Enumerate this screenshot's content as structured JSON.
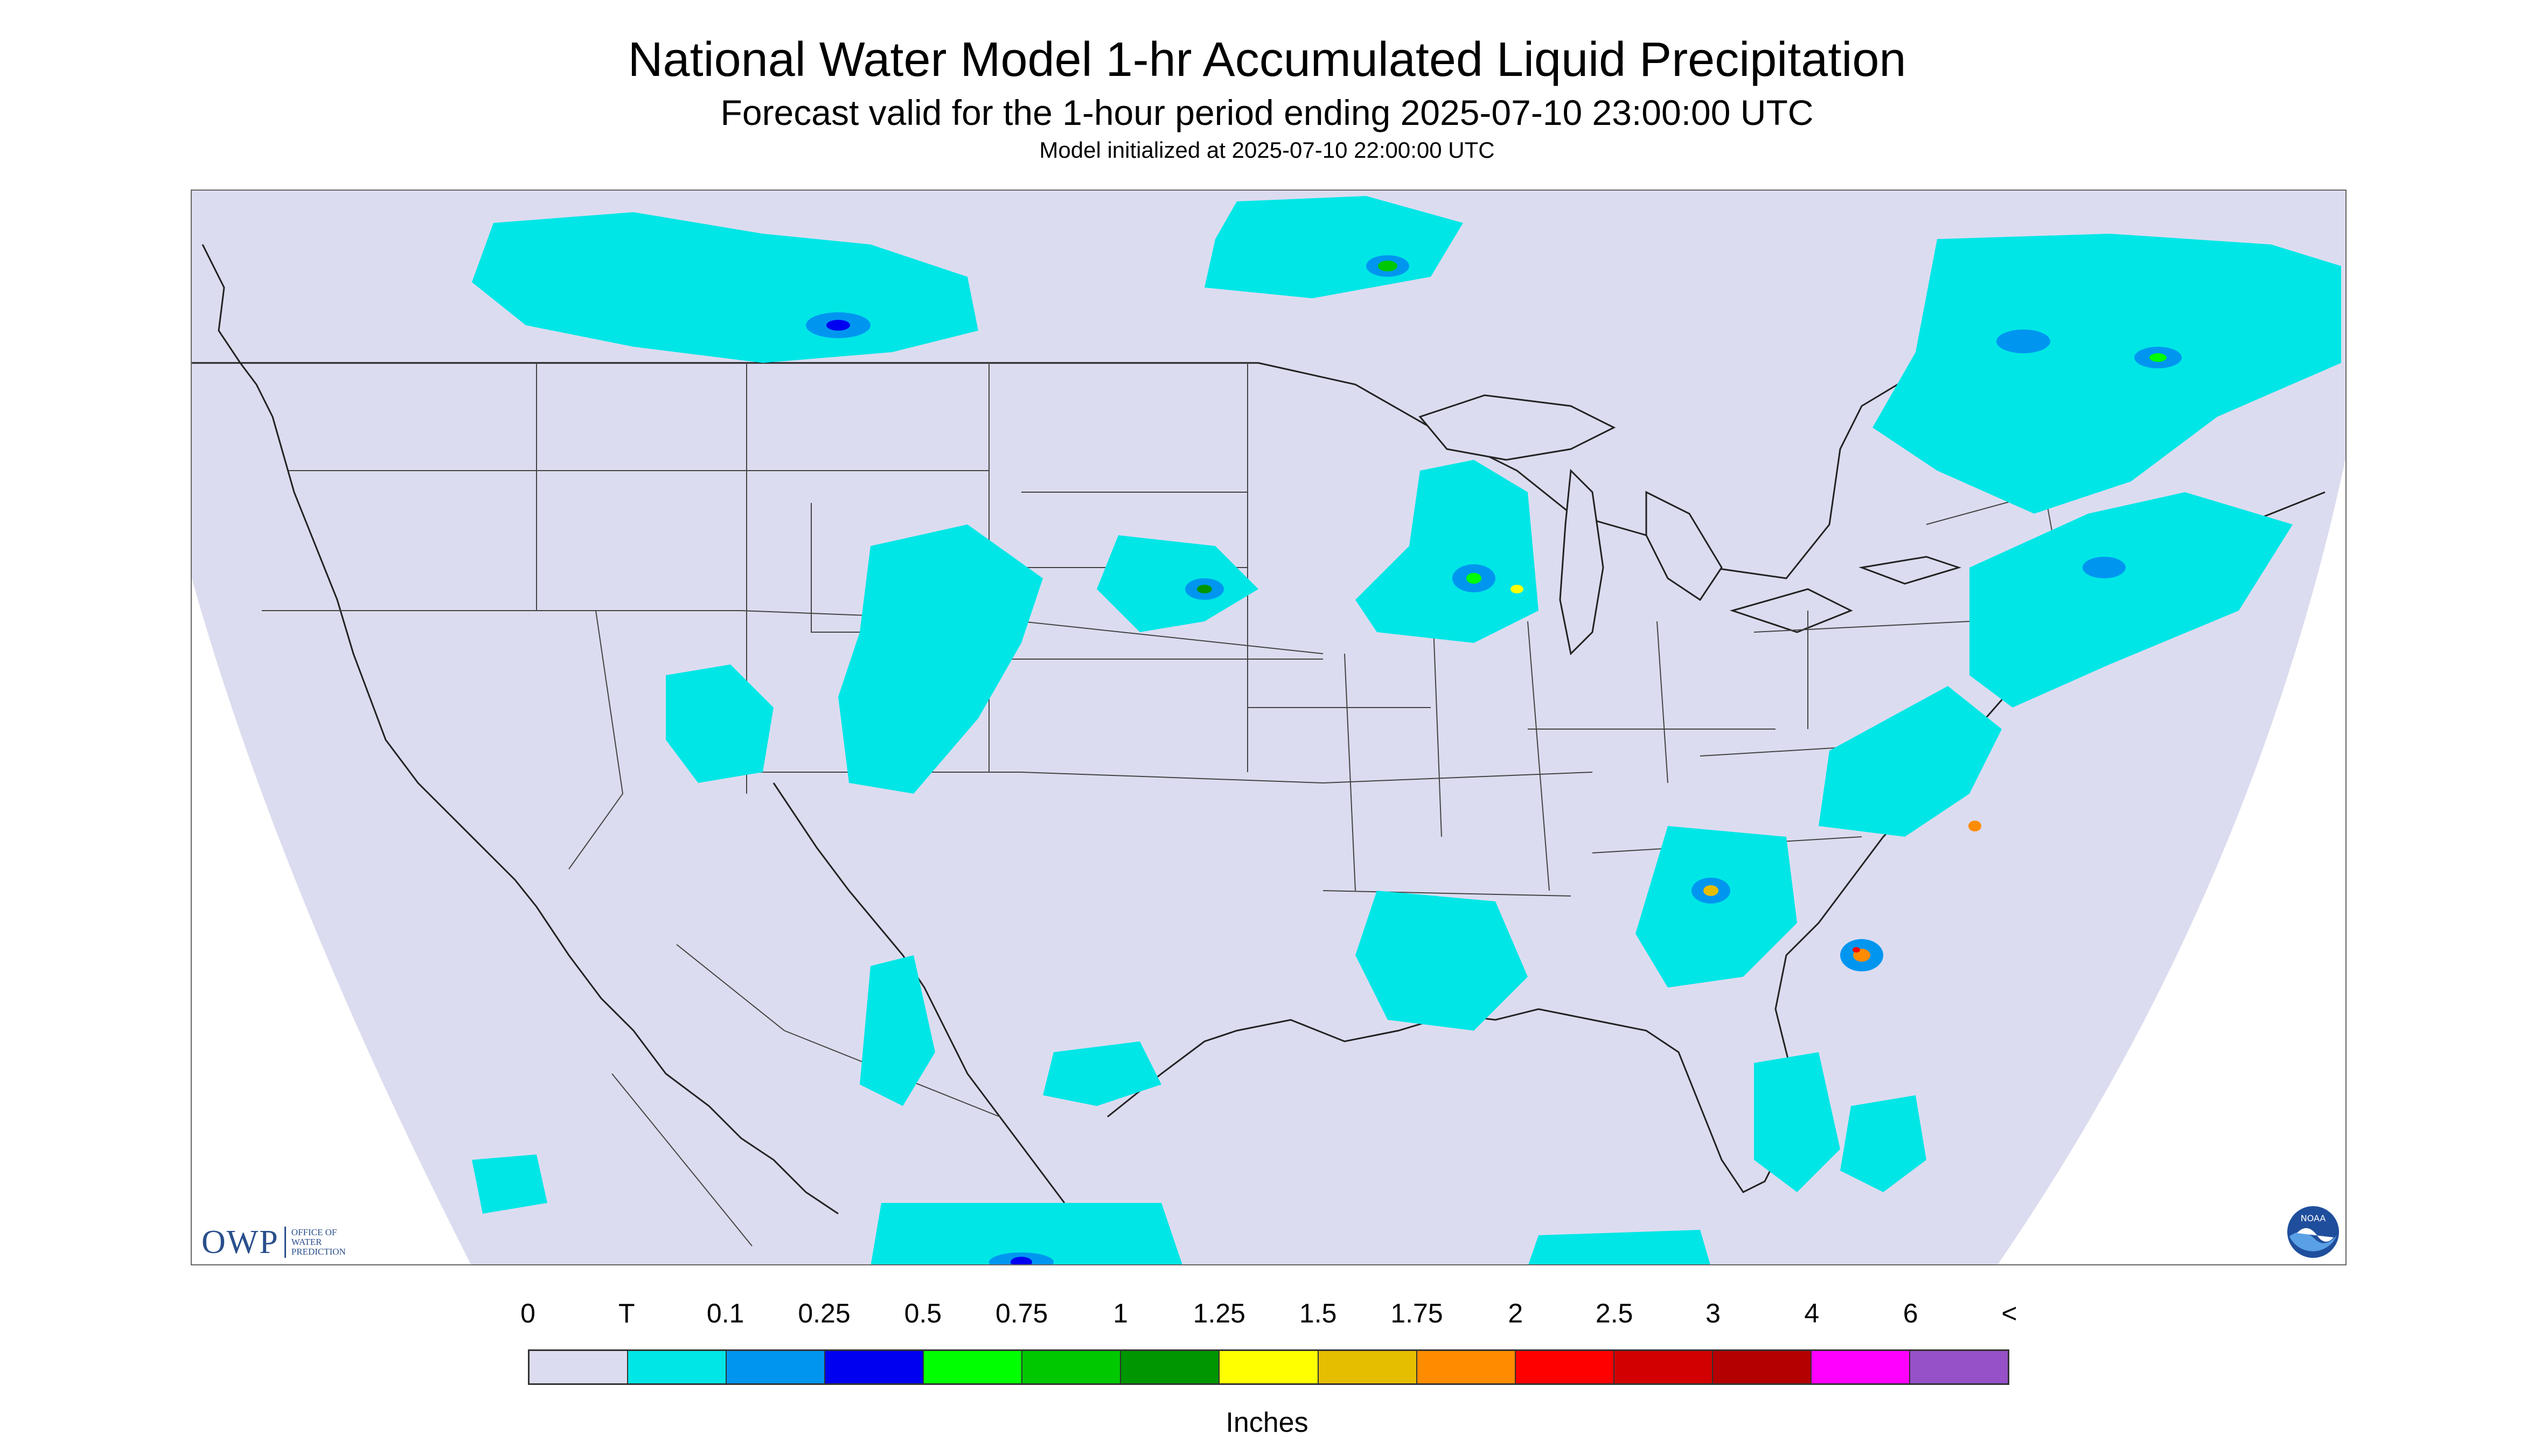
{
  "header": {
    "title": "National Water Model 1-hr Accumulated Liquid Precipitation",
    "subtitle": "Forecast valid for the 1-hour period ending 2025-07-10 23:00:00 UTC",
    "init": "Model initialized at 2025-07-10 22:00:00 UTC"
  },
  "logos": {
    "owp_letters": "OWP",
    "owp_line1": "OFFICE OF",
    "owp_line2": "WATER",
    "owp_line3": "PREDICTION",
    "noaa_text": "NOAA"
  },
  "legend": {
    "labels": [
      "0",
      "T",
      "0.1",
      "0.25",
      "0.5",
      "0.75",
      "1",
      "1.25",
      "1.5",
      "1.75",
      "2",
      "2.5",
      "3",
      "4",
      "6",
      "<"
    ],
    "colors": [
      "#dcdcf0",
      "#00e6e6",
      "#0096f0",
      "#0000f0",
      "#00ff00",
      "#00c800",
      "#009600",
      "#ffff00",
      "#e6be00",
      "#ff8c00",
      "#ff0000",
      "#d20000",
      "#b40000",
      "#ff00ff",
      "#9650c8"
    ],
    "units": "Inches"
  },
  "map": {
    "background": "#dcdcf0",
    "no_data": "#ffffff",
    "border_color": "#333333"
  }
}
